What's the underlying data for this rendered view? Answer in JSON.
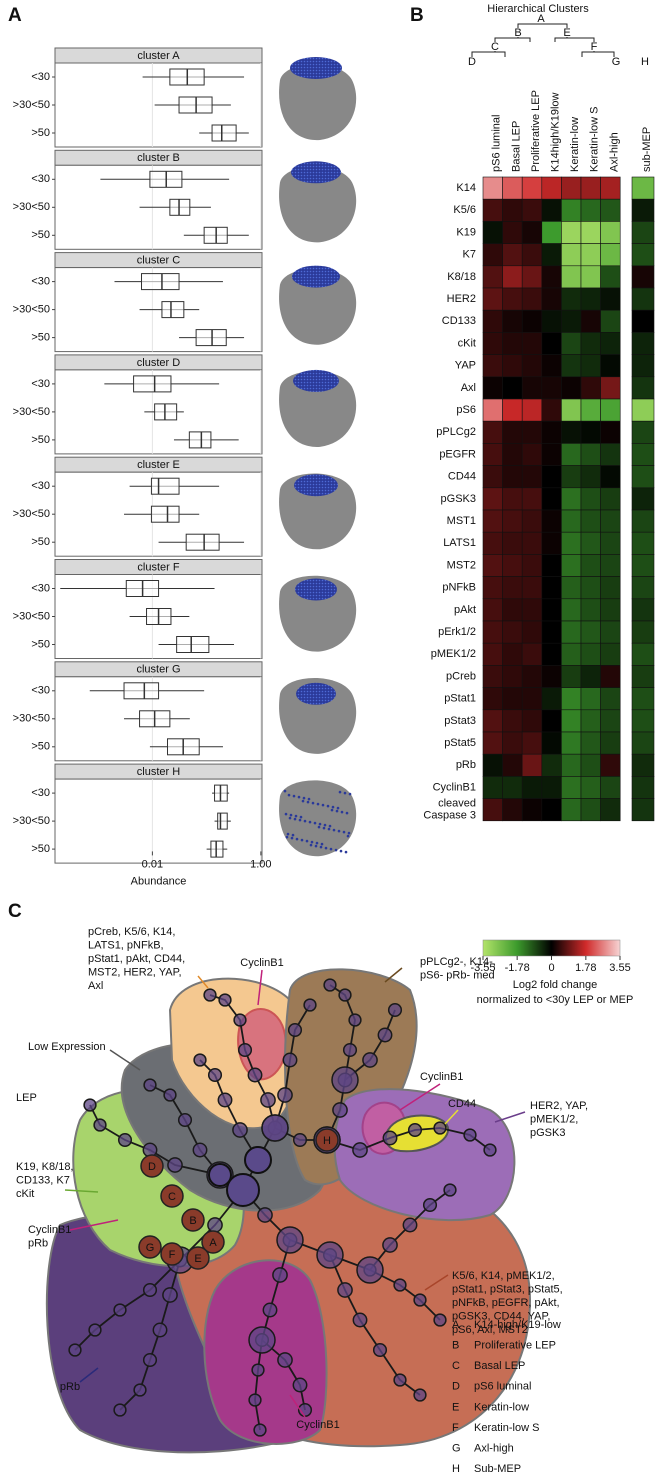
{
  "panels": {
    "a": "A",
    "b": "B",
    "c": "C"
  },
  "chart_data": [
    {
      "type": "box",
      "xlabel": "Abundance",
      "xscale": "log",
      "xlim": [
        0.00016,
        1.05
      ],
      "xticks": [
        0.01,
        {
          "value": 1,
          "label": "1.00"
        }
      ],
      "groups": [
        "<30",
        ">30<50",
        ">50"
      ],
      "facets": [
        {
          "name": "cluster A",
          "stats": [
            [
              0.0066,
              0.021,
              0.044,
              0.09,
              0.49
            ],
            [
              0.011,
              0.031,
              0.064,
              0.126,
              0.28
            ],
            [
              0.073,
              0.126,
              0.19,
              0.35,
              0.6
            ]
          ]
        },
        {
          "name": "cluster B",
          "stats": [
            [
              0.0011,
              0.009,
              0.018,
              0.035,
              0.26
            ],
            [
              0.0058,
              0.021,
              0.031,
              0.049,
              0.12
            ],
            [
              0.038,
              0.09,
              0.15,
              0.24,
              0.6
            ]
          ]
        },
        {
          "name": "cluster C",
          "stats": [
            [
              0.002,
              0.0063,
              0.015,
              0.031,
              0.2
            ],
            [
              0.0058,
              0.015,
              0.022,
              0.038,
              0.073
            ],
            [
              0.031,
              0.064,
              0.126,
              0.23,
              0.49
            ]
          ]
        },
        {
          "name": "cluster D",
          "stats": [
            [
              0.0013,
              0.0045,
              0.011,
              0.022,
              0.17
            ],
            [
              0.0071,
              0.011,
              0.017,
              0.028,
              0.038
            ],
            [
              0.025,
              0.048,
              0.08,
              0.12,
              0.39
            ]
          ]
        },
        {
          "name": "cluster E",
          "stats": [
            [
              0.0038,
              0.0096,
              0.013,
              0.031,
              0.17
            ],
            [
              0.003,
              0.0096,
              0.019,
              0.031,
              0.073
            ],
            [
              0.013,
              0.042,
              0.09,
              0.17,
              0.49
            ]
          ]
        },
        {
          "name": "cluster F",
          "stats": [
            [
              0.0002,
              0.0033,
              0.0066,
              0.013,
              0.14
            ],
            [
              0.0038,
              0.0078,
              0.013,
              0.022,
              0.048
            ],
            [
              0.013,
              0.028,
              0.052,
              0.11,
              0.32
            ]
          ]
        },
        {
          "name": "cluster G",
          "stats": [
            [
              0.0007,
              0.003,
              0.0071,
              0.013,
              0.09
            ],
            [
              0.003,
              0.0058,
              0.011,
              0.021,
              0.049
            ],
            [
              0.009,
              0.019,
              0.037,
              0.073,
              0.2
            ]
          ]
        },
        {
          "name": "cluster H",
          "stats": [
            [
              0.126,
              0.14,
              0.18,
              0.24,
              0.26
            ],
            [
              0.14,
              0.16,
              0.18,
              0.24,
              0.28
            ],
            [
              0.1,
              0.12,
              0.15,
              0.2,
              0.24
            ]
          ]
        }
      ]
    },
    {
      "type": "heatmap",
      "title": "Hierarchical Clusters",
      "dendrogram_labels": [
        "A",
        "B",
        "C",
        "D",
        "E",
        "F",
        "G",
        "H"
      ],
      "columns": [
        "pS6 luminal",
        "Basal LEP",
        "Proliferative LEP",
        "K14high/K19low",
        "Keratin-low",
        "Keratin-low S",
        "Axl-high",
        "sub-MEP"
      ],
      "rows": [
        "K14",
        "K5/6",
        "K19",
        "K7",
        "K8/18",
        "HER2",
        "CD133",
        "cKit",
        "YAP",
        "Axl",
        "pS6",
        "pPLCg2",
        "pEGFR",
        "CD44",
        "pGSK3",
        "MST1",
        "LATS1",
        "MST2",
        "pNFkB",
        "pAkt",
        "pErk1/2",
        "pMEK1/2",
        "pCreb",
        "pStat1",
        "pStat3",
        "pStat5",
        "pRb",
        "CyclinB1",
        [
          "cleaved",
          "Caspase 3"
        ]
      ],
      "values": [
        [
          2.8,
          2.3,
          2.0,
          1.6,
          1.3,
          1.3,
          1.4,
          -2.5
        ],
        [
          0.6,
          0.4,
          0.5,
          -0.2,
          -1.5,
          -1.2,
          -1.0,
          -0.3
        ],
        [
          -0.2,
          0.4,
          0.2,
          -1.8,
          -3.2,
          -3.2,
          -2.8,
          -0.8
        ],
        [
          0.4,
          0.7,
          0.5,
          -0.3,
          -3.0,
          -3.0,
          -2.5,
          -0.9
        ],
        [
          0.7,
          1.2,
          0.9,
          0.2,
          -2.8,
          -2.8,
          -0.9,
          0.2
        ],
        [
          0.8,
          0.6,
          0.5,
          0.2,
          -0.5,
          -0.4,
          -0.2,
          -0.6
        ],
        [
          0.4,
          0.2,
          0.1,
          -0.2,
          -0.3,
          0.2,
          -0.8,
          0.0
        ],
        [
          0.4,
          0.3,
          0.3,
          0.0,
          -0.8,
          -0.5,
          -0.4,
          -0.4
        ],
        [
          0.5,
          0.4,
          0.3,
          0.1,
          -0.6,
          -0.5,
          -0.1,
          -0.4
        ],
        [
          0.1,
          0.0,
          0.2,
          0.2,
          0.1,
          0.4,
          1.0,
          -0.6
        ],
        [
          2.5,
          1.7,
          1.6,
          0.4,
          -2.8,
          -2.2,
          -2.0,
          -3.0
        ],
        [
          0.6,
          0.3,
          0.3,
          0.1,
          -0.2,
          -0.1,
          0.1,
          -0.8
        ],
        [
          0.6,
          0.3,
          0.4,
          0.1,
          -1.2,
          -0.9,
          -0.6,
          -0.9
        ],
        [
          0.5,
          0.3,
          0.3,
          0.0,
          -0.7,
          -0.5,
          -0.1,
          -0.9
        ],
        [
          0.8,
          0.6,
          0.6,
          0.0,
          -1.3,
          -0.9,
          -0.7,
          -0.4
        ],
        [
          0.7,
          0.6,
          0.5,
          0.1,
          -1.2,
          -0.9,
          -0.8,
          -0.8
        ],
        [
          0.6,
          0.5,
          0.5,
          0.1,
          -1.3,
          -1.0,
          -0.8,
          -0.9
        ],
        [
          0.7,
          0.6,
          0.5,
          0.0,
          -1.3,
          -0.9,
          -0.8,
          -0.9
        ],
        [
          0.6,
          0.5,
          0.5,
          0.0,
          -1.1,
          -0.9,
          -0.7,
          -0.8
        ],
        [
          0.6,
          0.4,
          0.4,
          0.0,
          -1.2,
          -0.9,
          -0.7,
          -0.6
        ],
        [
          0.6,
          0.5,
          0.4,
          0.0,
          -1.2,
          -1.0,
          -0.8,
          -0.7
        ],
        [
          0.6,
          0.4,
          0.5,
          0.0,
          -1.1,
          -0.9,
          -0.7,
          -0.9
        ],
        [
          0.5,
          0.4,
          0.3,
          0.1,
          -0.7,
          -0.4,
          0.3,
          -0.7
        ],
        [
          0.4,
          0.3,
          0.3,
          -0.3,
          -1.5,
          -1.2,
          -0.8,
          -0.9
        ],
        [
          0.7,
          0.5,
          0.4,
          0.0,
          -1.5,
          -1.1,
          -0.8,
          -0.9
        ],
        [
          0.7,
          0.5,
          0.6,
          -0.1,
          -1.4,
          -1.0,
          -0.7,
          -0.8
        ],
        [
          -0.2,
          0.3,
          0.9,
          -0.5,
          -1.2,
          -0.9,
          0.4,
          -0.5
        ],
        [
          -0.5,
          -0.5,
          -0.3,
          -0.3,
          -1.3,
          -1.1,
          -0.8,
          -0.6
        ],
        [
          0.6,
          0.3,
          0.1,
          0.0,
          -1.2,
          -0.9,
          -0.5,
          -0.6
        ]
      ],
      "clim": [
        -3.55,
        3.55
      ],
      "colorbar_ticks": [
        -3.55,
        -1.78,
        0,
        1.78,
        3.55
      ],
      "colors": [
        "#b3e46a",
        "#3c9a2c",
        "#000000",
        "#d02a2a",
        "#f7d4d4"
      ],
      "colorbar_label": [
        "Log2 fold change",
        "normalized to <30y LEP or MEP"
      ]
    }
  ],
  "diagram": {
    "lep_label": "LEP",
    "annotations": [
      [
        "pCreb, K5/6, K14,",
        "LATS1, pNFkB,",
        "pStat1, pAkt, CD44,",
        "MST2, HER2, YAP,",
        "Axl"
      ],
      [
        "CyclinB1"
      ],
      [
        "pPLCg2-, K14-,",
        "pS6- pRb- med"
      ],
      [
        "Low Expression"
      ],
      [
        "CyclinB1"
      ],
      [
        "CD44"
      ],
      [
        "HER2, YAP,",
        "pMEK1/2,",
        "pGSK3"
      ],
      [
        "K19, K8/18,",
        "CD133, K7",
        "cKit"
      ],
      [
        "CyclinB1",
        "pRb"
      ],
      [
        "K5/6, K14, pMEK1/2,",
        "pStat1, pStat3, pStat5,",
        "pNFkB, pEGFR, pAkt,",
        "pGSK3, CD44, YAP,",
        "pS6, Axl, MST2"
      ],
      [
        "pRb"
      ],
      [
        "CyclinB1"
      ]
    ],
    "cluster_nodes": [
      "D",
      "C",
      "B",
      "A",
      "G",
      "F",
      "E",
      "H"
    ],
    "legend": [
      {
        "key": "A",
        "name": "K14-high/K19-low"
      },
      {
        "key": "B",
        "name": "Proliferative LEP"
      },
      {
        "key": "C",
        "name": "Basal LEP"
      },
      {
        "key": "D",
        "name": "pS6 luminal"
      },
      {
        "key": "E",
        "name": "Keratin-low"
      },
      {
        "key": "F",
        "name": "Keratin-low S"
      },
      {
        "key": "G",
        "name": "Axl-high"
      },
      {
        "key": "H",
        "name": "Sub-MEP"
      }
    ]
  }
}
